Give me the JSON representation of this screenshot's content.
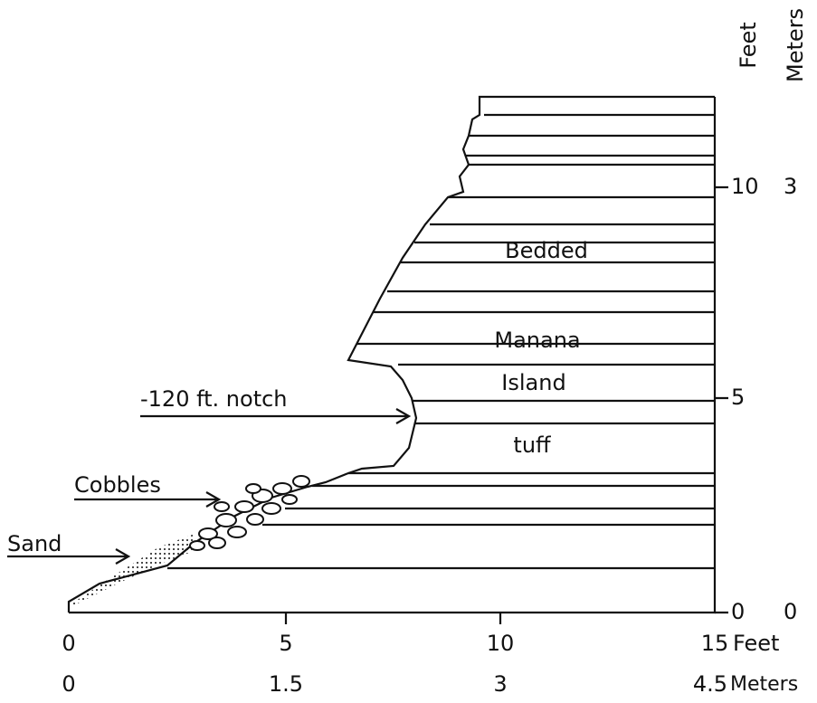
{
  "labels": {
    "bedded": "Bedded",
    "manana": "Manana",
    "island": "Island",
    "tuff": "tuff",
    "notch": "-120 ft. notch",
    "cobbles": "Cobbles",
    "sand": "Sand"
  },
  "right_axis": {
    "feet_title": "Feet",
    "meters_title": "Meters",
    "feet_ticks": [
      "10",
      "5",
      "0"
    ],
    "meters_ticks": [
      "3",
      "0"
    ]
  },
  "bottom_axis": {
    "feet_ticks": [
      "0",
      "5",
      "10",
      "15"
    ],
    "feet_unit": "Feet",
    "meters_ticks": [
      "0",
      "1.5",
      "3",
      "4.5"
    ],
    "meters_unit": "Meters"
  }
}
